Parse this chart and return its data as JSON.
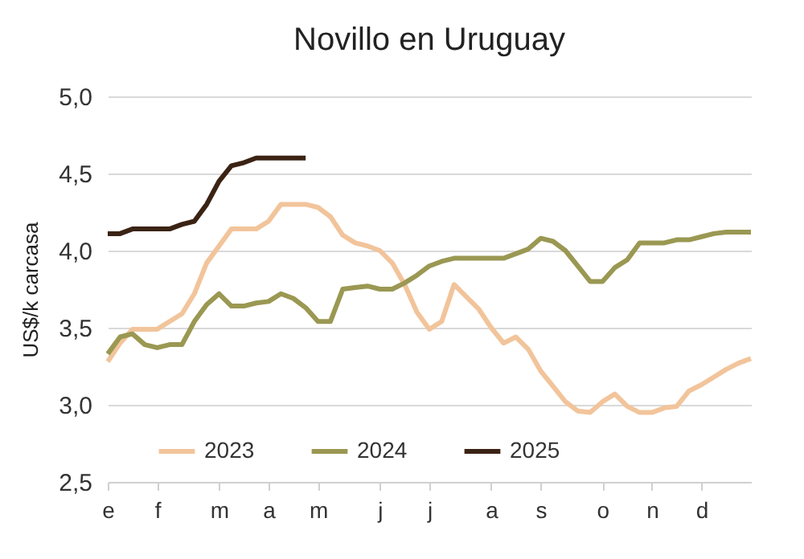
{
  "chart_data": {
    "type": "line",
    "title": "Novillo en Uruguay",
    "ylabel": "US$/k carcasa",
    "categories": [
      "e",
      null,
      null,
      null,
      "f",
      null,
      null,
      null,
      null,
      "m",
      null,
      null,
      null,
      "a",
      null,
      null,
      null,
      "m",
      null,
      null,
      null,
      null,
      "j",
      null,
      null,
      null,
      "j",
      null,
      null,
      null,
      null,
      "a",
      null,
      null,
      null,
      "s",
      null,
      null,
      null,
      null,
      "o",
      null,
      null,
      null,
      "n",
      null,
      null,
      null,
      "d",
      null,
      null,
      null,
      null
    ],
    "series": [
      {
        "name": "2023",
        "color": "#f2c49b",
        "values": [
          3.28,
          3.4,
          3.49,
          3.49,
          3.49,
          3.54,
          3.59,
          3.72,
          3.92,
          4.03,
          4.14,
          4.14,
          4.14,
          4.19,
          4.3,
          4.3,
          4.3,
          4.28,
          4.22,
          4.1,
          4.05,
          4.03,
          4.0,
          3.92,
          3.78,
          3.6,
          3.49,
          3.54,
          3.78,
          3.7,
          3.62,
          3.5,
          3.4,
          3.44,
          3.36,
          3.22,
          3.12,
          3.02,
          2.96,
          2.95,
          3.02,
          3.07,
          2.99,
          2.95,
          2.95,
          2.98,
          2.99,
          3.09,
          3.13,
          3.18,
          3.23,
          3.27,
          3.3
        ]
      },
      {
        "name": "2024",
        "color": "#9a9852",
        "values": [
          3.33,
          3.44,
          3.46,
          3.39,
          3.37,
          3.39,
          3.39,
          3.54,
          3.65,
          3.72,
          3.64,
          3.64,
          3.66,
          3.67,
          3.72,
          3.69,
          3.63,
          3.54,
          3.54,
          3.75,
          3.76,
          3.77,
          3.75,
          3.75,
          3.79,
          3.84,
          3.9,
          3.93,
          3.95,
          3.95,
          3.95,
          3.95,
          3.95,
          3.98,
          4.01,
          4.08,
          4.06,
          4.0,
          3.9,
          3.8,
          3.8,
          3.89,
          3.94,
          4.05,
          4.05,
          4.05,
          4.07,
          4.07,
          4.09,
          4.11,
          4.12,
          4.12,
          4.12
        ]
      },
      {
        "name": "2025",
        "color": "#3b2314",
        "values": [
          4.11,
          4.11,
          4.14,
          4.14,
          4.14,
          4.14,
          4.17,
          4.19,
          4.3,
          4.45,
          4.55,
          4.57,
          4.6,
          4.6,
          4.6,
          4.6,
          4.6,
          null,
          null,
          null,
          null,
          null,
          null,
          null,
          null,
          null,
          null,
          null,
          null,
          null,
          null,
          null,
          null,
          null,
          null,
          null,
          null,
          null,
          null,
          null,
          null,
          null,
          null,
          null,
          null,
          null,
          null,
          null,
          null,
          null,
          null,
          null,
          null
        ]
      }
    ],
    "ylim": [
      2.5,
      5.0
    ],
    "yticks": [
      {
        "value": 2.5,
        "label": "2,5"
      },
      {
        "value": 3.0,
        "label": "3,0"
      },
      {
        "value": 3.5,
        "label": "3,5"
      },
      {
        "value": 4.0,
        "label": "4,0"
      },
      {
        "value": 4.5,
        "label": "4,5"
      },
      {
        "value": 5.0,
        "label": "5,0"
      }
    ],
    "grid": "y",
    "legend": "bottom",
    "marker": "none",
    "line_style": "solid"
  }
}
